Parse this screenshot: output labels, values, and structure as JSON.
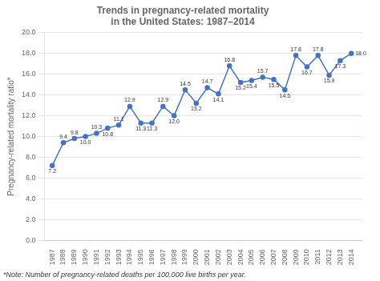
{
  "chart_data": {
    "type": "line",
    "title": "Trends in pregnancy-related mortality\nin the United States: 1987–2014",
    "y_label": "Pregnancy-related mortality ratio*",
    "annotations": [
      "*Note: Number of pregnancy-related deaths per 100,000 live births per year."
    ],
    "x": [
      1987,
      1988,
      1989,
      1990,
      1991,
      1992,
      1993,
      1994,
      1995,
      1996,
      1997,
      1998,
      1999,
      2000,
      2001,
      2002,
      2003,
      2004,
      2005,
      2006,
      2007,
      2008,
      2009,
      2010,
      2011,
      2012,
      2013,
      2014
    ],
    "values": [
      7.2,
      9.4,
      9.8,
      10.0,
      10.3,
      10.8,
      11.1,
      12.9,
      11.3,
      11.3,
      12.9,
      12.0,
      14.5,
      13.2,
      14.7,
      14.1,
      16.8,
      15.2,
      15.4,
      15.7,
      15.5,
      14.5,
      17.8,
      16.7,
      17.8,
      15.9,
      17.3,
      18.0
    ],
    "value_labels": [
      "7.2",
      "9.4",
      "9.8",
      "10.0",
      "10.3",
      "10.8",
      "11.1",
      "12.9",
      "11.3",
      "11.3",
      "12.9",
      "12.0",
      "14.5",
      "13.2",
      "14.7",
      "14.1",
      "16.8",
      "15.2",
      "15.4",
      "15.7",
      "15.5",
      "14.5",
      "17.8",
      "16.7",
      "17.8",
      "15.9",
      "17.3",
      "18.0"
    ],
    "data_labels": true,
    "color": "#4472C4",
    "marker": "circle",
    "xlim": [
      1986.3,
      2015.0
    ],
    "xticks": [
      1987,
      1988,
      1989,
      1990,
      1991,
      1992,
      1993,
      1994,
      1995,
      1996,
      1997,
      1998,
      1999,
      2000,
      2001,
      2002,
      2003,
      2004,
      2005,
      2006,
      2007,
      2008,
      2009,
      2010,
      2011,
      2012,
      2013,
      2014
    ],
    "ylim": [
      0.0,
      20.0
    ],
    "yticks": [
      {
        "value": 0.0,
        "label": "0.0"
      },
      {
        "value": 2.0,
        "label": "2.0"
      },
      {
        "value": 4.0,
        "label": "4.0"
      },
      {
        "value": 6.0,
        "label": "6.0"
      },
      {
        "value": 8.0,
        "label": "8.0"
      },
      {
        "value": 10.0,
        "label": "10.0"
      },
      {
        "value": 12.0,
        "label": "12.0"
      },
      {
        "value": 14.0,
        "label": "14.0"
      },
      {
        "value": 16.0,
        "label": "16.0"
      },
      {
        "value": 18.0,
        "label": "18.0"
      },
      {
        "value": 20.0,
        "label": "20.0"
      }
    ],
    "grid": true
  }
}
